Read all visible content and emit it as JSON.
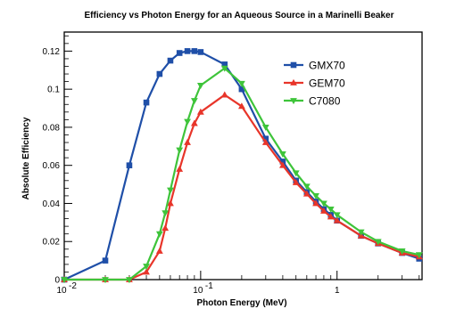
{
  "chart_data": {
    "type": "line",
    "title": "Efficiency vs Photon Energy for an Aqueous Source in a Marinelli Beaker",
    "xlabel": "Photon Energy (MeV)",
    "ylabel": "Absolute Efficiency",
    "xscale": "log",
    "xlim": [
      0.01,
      4.2
    ],
    "ylim": [
      0,
      0.13
    ],
    "x_ticks": [
      {
        "value": 0.01,
        "label": "10",
        "exp": "-2"
      },
      {
        "value": 0.1,
        "label": "10",
        "exp": "-1"
      },
      {
        "value": 1,
        "label": "1",
        "exp": ""
      }
    ],
    "y_ticks": [
      {
        "value": 0,
        "label": "0"
      },
      {
        "value": 0.02,
        "label": "0.02"
      },
      {
        "value": 0.04,
        "label": "0.04"
      },
      {
        "value": 0.06,
        "label": "0.06"
      },
      {
        "value": 0.08,
        "label": "0.08"
      },
      {
        "value": 0.1,
        "label": "0.1"
      },
      {
        "value": 0.12,
        "label": "0.12"
      }
    ],
    "grid": false,
    "legend_position": "top-right",
    "series": [
      {
        "name": "GMX70",
        "color": "#1f4fa8",
        "marker": "square",
        "x": [
          0.01,
          0.02,
          0.03,
          0.04,
          0.05,
          0.06,
          0.07,
          0.08,
          0.09,
          0.1,
          0.15,
          0.2,
          0.3,
          0.4,
          0.5,
          0.6,
          0.7,
          0.8,
          0.9,
          1.0,
          1.5,
          2.0,
          3.0,
          4.0
        ],
        "y": [
          0.0,
          0.01,
          0.06,
          0.093,
          0.108,
          0.115,
          0.119,
          0.12,
          0.12,
          0.1195,
          0.113,
          0.1,
          0.074,
          0.062,
          0.052,
          0.046,
          0.041,
          0.037,
          0.034,
          0.031,
          0.023,
          0.019,
          0.014,
          0.011
        ]
      },
      {
        "name": "GEM70",
        "color": "#e8352a",
        "marker": "triangle-up",
        "x": [
          0.01,
          0.02,
          0.03,
          0.04,
          0.05,
          0.055,
          0.06,
          0.07,
          0.08,
          0.09,
          0.1,
          0.15,
          0.2,
          0.3,
          0.4,
          0.5,
          0.6,
          0.7,
          0.8,
          0.9,
          1.0,
          1.5,
          2.0,
          3.0,
          4.0
        ],
        "y": [
          0.0,
          0.0,
          0.0,
          0.004,
          0.015,
          0.027,
          0.04,
          0.058,
          0.072,
          0.082,
          0.088,
          0.097,
          0.091,
          0.072,
          0.06,
          0.051,
          0.045,
          0.04,
          0.036,
          0.033,
          0.031,
          0.023,
          0.019,
          0.014,
          0.012
        ]
      },
      {
        "name": "C7080",
        "color": "#3ec43a",
        "marker": "triangle-down",
        "x": [
          0.01,
          0.02,
          0.03,
          0.04,
          0.05,
          0.055,
          0.06,
          0.07,
          0.08,
          0.09,
          0.1,
          0.15,
          0.2,
          0.3,
          0.4,
          0.5,
          0.6,
          0.7,
          0.8,
          0.9,
          1.0,
          1.5,
          2.0,
          3.0,
          4.0
        ],
        "y": [
          0.0,
          0.0,
          0.0,
          0.007,
          0.024,
          0.035,
          0.047,
          0.068,
          0.083,
          0.094,
          0.102,
          0.111,
          0.103,
          0.08,
          0.066,
          0.056,
          0.049,
          0.044,
          0.04,
          0.037,
          0.034,
          0.025,
          0.02,
          0.015,
          0.013
        ]
      }
    ]
  }
}
